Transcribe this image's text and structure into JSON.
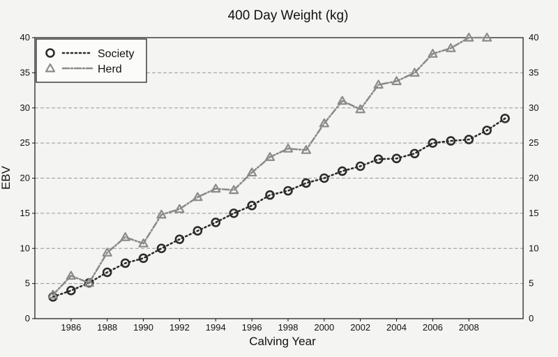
{
  "chart_data": {
    "type": "line",
    "title": "400 Day Weight (kg)",
    "xlabel": "Calving Year",
    "ylabel": "EBV",
    "xlim": [
      1984,
      2011
    ],
    "ylim": [
      0,
      40
    ],
    "x_ticks": [
      1986,
      1988,
      1990,
      1992,
      1994,
      1996,
      1998,
      2000,
      2002,
      2004,
      2006,
      2008
    ],
    "y_ticks": [
      0,
      5,
      10,
      15,
      20,
      25,
      30,
      35,
      40
    ],
    "grid": "horizontal dashed",
    "legend_position": "top-left",
    "series": [
      {
        "name": "Society",
        "marker": "circle",
        "line_style": "dotted",
        "x": [
          1985,
          1986,
          1987,
          1988,
          1989,
          1990,
          1991,
          1992,
          1993,
          1994,
          1995,
          1996,
          1997,
          1998,
          1999,
          2000,
          2001,
          2002,
          2003,
          2004,
          2005,
          2006,
          2007,
          2008,
          2009,
          2010
        ],
        "values": [
          3.1,
          4.0,
          5.1,
          6.6,
          7.9,
          8.6,
          10.0,
          11.3,
          12.5,
          13.7,
          15.0,
          16.1,
          17.6,
          18.2,
          19.3,
          20.0,
          21.0,
          21.7,
          22.7,
          22.8,
          23.5,
          25.0,
          25.3,
          25.5,
          26.8,
          28.5
        ]
      },
      {
        "name": "Herd",
        "marker": "triangle",
        "line_style": "dash-dot",
        "x": [
          1985,
          1986,
          1987,
          1988,
          1989,
          1990,
          1991,
          1992,
          1993,
          1994,
          1995,
          1996,
          1997,
          1998,
          1999,
          2000,
          2001,
          2002,
          2003,
          2004,
          2005,
          2006,
          2007,
          2008,
          2009
        ],
        "values": [
          3.4,
          6.1,
          5.1,
          9.4,
          11.6,
          10.7,
          14.8,
          15.6,
          17.3,
          18.5,
          18.3,
          20.8,
          23.0,
          24.2,
          24.0,
          27.8,
          31.0,
          29.8,
          33.3,
          33.8,
          35.0,
          37.7,
          38.5,
          40.0,
          40.0
        ]
      }
    ]
  },
  "colors": {
    "background": "#f4f4f2",
    "society": "#2b2b2b",
    "herd": "#8a8a8a",
    "grid": "#777777",
    "axis": "#111111"
  }
}
